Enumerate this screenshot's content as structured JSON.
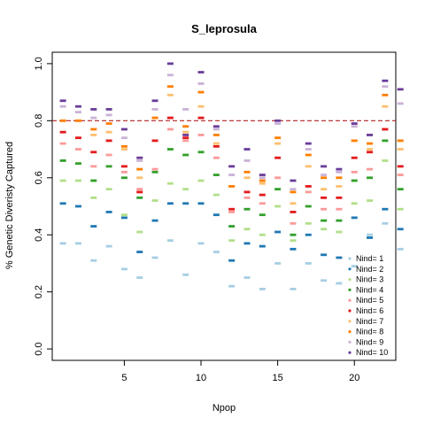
{
  "chart_data": {
    "type": "scatter",
    "title": "S_leprosula",
    "xlabel": "Npop",
    "ylabel": "% Genetic Diveristy Captured",
    "xlim": [
      0.3,
      22.7
    ],
    "ylim": [
      -0.04,
      1.04
    ],
    "x_ticks": [
      5,
      10,
      15,
      20
    ],
    "x_tick_labels": [
      "5",
      "10",
      "15",
      "20"
    ],
    "y_ticks": [
      0.0,
      0.2,
      0.4,
      0.6,
      0.8,
      1.0
    ],
    "y_tick_labels": [
      "0.0",
      "0.2",
      "0.4",
      "0.6",
      "0.8",
      "1.0"
    ],
    "reference_line": {
      "y": 0.8,
      "color": "#b22222",
      "style": "dashed"
    },
    "legend_position": "bottom-right",
    "x": [
      1,
      2,
      3,
      4,
      5,
      6,
      7,
      8,
      9,
      10,
      11,
      12,
      13,
      14,
      15,
      16,
      17,
      18,
      19,
      20,
      21,
      22,
      23
    ],
    "series": [
      {
        "name": "Nind= 1",
        "color": "#a6cee3",
        "values": [
          0.37,
          0.37,
          0.31,
          0.36,
          0.28,
          0.25,
          0.32,
          0.38,
          0.26,
          0.37,
          0.34,
          0.22,
          0.25,
          0.21,
          0.3,
          0.21,
          0.3,
          0.24,
          0.23,
          0.29,
          0.4,
          0.44,
          0.35
        ]
      },
      {
        "name": "Nind= 2",
        "color": "#1f78b4",
        "values": [
          0.51,
          0.5,
          0.43,
          0.48,
          0.46,
          0.34,
          0.45,
          0.51,
          0.51,
          0.51,
          0.47,
          0.31,
          0.37,
          0.36,
          0.41,
          0.35,
          0.4,
          0.33,
          0.32,
          0.46,
          0.39,
          0.49,
          0.42
        ]
      },
      {
        "name": "Nind= 3",
        "color": "#b2df8a",
        "values": [
          0.59,
          0.59,
          0.53,
          0.56,
          0.47,
          0.41,
          0.52,
          0.58,
          0.56,
          0.59,
          0.54,
          0.38,
          0.42,
          0.4,
          0.5,
          0.38,
          0.44,
          0.42,
          0.41,
          0.51,
          0.52,
          0.66,
          0.49
        ]
      },
      {
        "name": "Nind= 4",
        "color": "#33a02c",
        "values": [
          0.66,
          0.65,
          0.59,
          0.64,
          0.6,
          0.53,
          0.62,
          0.7,
          0.68,
          0.69,
          0.61,
          0.43,
          0.49,
          0.47,
          0.56,
          0.4,
          0.5,
          0.45,
          0.45,
          0.59,
          0.6,
          0.73,
          0.56
        ]
      },
      {
        "name": "Nind= 5",
        "color": "#fb9a99",
        "values": [
          0.72,
          0.7,
          0.64,
          0.68,
          0.62,
          0.56,
          0.63,
          0.77,
          0.73,
          0.75,
          0.67,
          0.48,
          0.53,
          0.51,
          0.6,
          0.44,
          0.55,
          0.49,
          0.49,
          0.62,
          0.63,
          0.77,
          0.61
        ]
      },
      {
        "name": "Nind= 6",
        "color": "#e31a1c",
        "values": [
          0.76,
          0.74,
          0.69,
          0.73,
          0.64,
          0.55,
          0.73,
          0.81,
          0.74,
          0.81,
          0.71,
          0.49,
          0.55,
          0.54,
          0.67,
          0.48,
          0.57,
          0.53,
          0.53,
          0.67,
          0.69,
          0.77,
          0.64
        ]
      },
      {
        "name": "Nind= 7",
        "color": "#fdbf6f",
        "values": [
          0.8,
          0.8,
          0.75,
          0.76,
          0.7,
          0.6,
          0.81,
          0.89,
          0.76,
          0.85,
          0.72,
          0.57,
          0.6,
          0.58,
          0.72,
          0.51,
          0.64,
          0.56,
          0.57,
          0.73,
          0.7,
          0.85,
          0.7
        ]
      },
      {
        "name": "Nind= 8",
        "color": "#ff7f00",
        "values": [
          0.8,
          0.8,
          0.77,
          0.79,
          0.71,
          0.63,
          0.81,
          0.92,
          0.78,
          0.9,
          0.75,
          0.57,
          0.62,
          0.59,
          0.74,
          0.55,
          0.68,
          0.6,
          0.6,
          0.73,
          0.72,
          0.89,
          0.73
        ]
      },
      {
        "name": "Nind= 9",
        "color": "#cab2d6",
        "values": [
          0.85,
          0.83,
          0.81,
          0.82,
          0.74,
          0.66,
          0.84,
          0.96,
          0.84,
          0.93,
          0.77,
          0.61,
          0.66,
          0.6,
          0.79,
          0.56,
          0.7,
          0.61,
          0.62,
          0.78,
          0.75,
          0.92,
          0.86
        ]
      },
      {
        "name": "Nind= 10",
        "color": "#6a3d9a",
        "values": [
          0.87,
          0.85,
          0.84,
          0.84,
          0.77,
          0.67,
          0.87,
          1.0,
          0.75,
          0.97,
          0.78,
          0.64,
          0.7,
          0.61,
          0.8,
          0.59,
          0.72,
          0.64,
          0.63,
          0.79,
          0.75,
          0.94,
          0.91
        ]
      }
    ]
  }
}
